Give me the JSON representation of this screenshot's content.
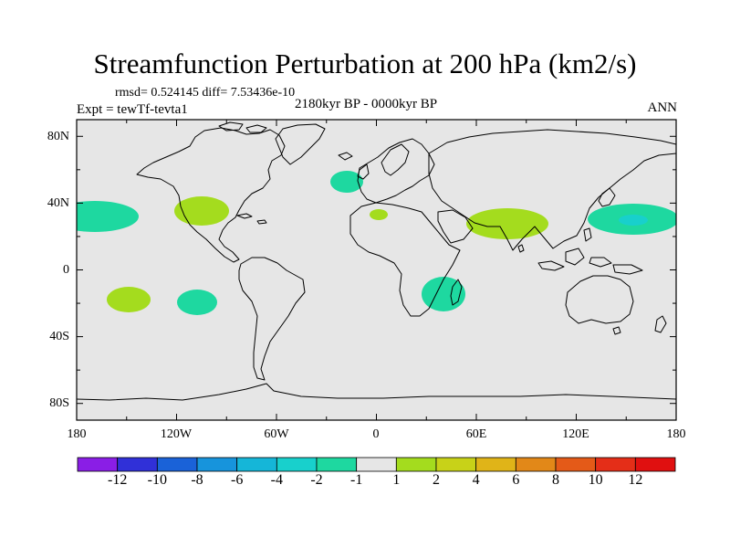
{
  "title": "Streamfunction Perturbation at 200 hPa (km2/s)",
  "stats": "rmsd= 0.524145 diff= 7.53436e-10",
  "expt": "Expt = tewTf-tevta1",
  "period": "2180kyr BP - 0000kyr BP",
  "season": "ANN",
  "lat_labels": [
    "80N",
    "40N",
    "0",
    "40S",
    "80S"
  ],
  "lon_labels": [
    "180",
    "120W",
    "60W",
    "0",
    "60E",
    "120E",
    "180"
  ],
  "colorbar": {
    "labels": [
      "-12",
      "-10",
      "-8",
      "-6",
      "-4",
      "-2",
      "-1",
      "1",
      "2",
      "4",
      "6",
      "8",
      "10",
      "12"
    ],
    "colors": [
      "#8a1ee6",
      "#3030d8",
      "#1a62d8",
      "#1794dc",
      "#15b6d8",
      "#18d0cc",
      "#1ed8a0",
      "#e6e6e6",
      "#a4dc1e",
      "#c8d218",
      "#e0b418",
      "#e28818",
      "#e45a18",
      "#e42e18",
      "#e01010"
    ]
  },
  "colors": {
    "land_background": "#e6e6e6",
    "neg_anomaly": "#1ed8a0",
    "pos_anomaly": "#a4dc1e",
    "strong_neg": "#18d0cc"
  },
  "map_data": {
    "projection": "cylindrical equidistant",
    "lat_range": [
      -90,
      90
    ],
    "lon_range": [
      -180,
      180
    ],
    "anomalies": [
      {
        "name": "central-north-pacific-negative",
        "lon": -175,
        "lat": 30,
        "value_class": "-2 to -1"
      },
      {
        "name": "mexico-positive",
        "lon": -108,
        "lat": 31,
        "value_class": "1 to 2"
      },
      {
        "name": "north-atlantic-negative",
        "lon": -24,
        "lat": 49,
        "value_class": "-2 to -1"
      },
      {
        "name": "north-africa-positive",
        "lon": 4,
        "lat": 33,
        "value_class": "1 to 2"
      },
      {
        "name": "south-asia-positive",
        "lon": 75,
        "lat": 29,
        "value_class": "1 to 2"
      },
      {
        "name": "northwest-pacific-negative",
        "lon": 160,
        "lat": 31,
        "value_class": "-4 to -1"
      },
      {
        "name": "south-pacific-positive",
        "lon": -141,
        "lat": -17,
        "value_class": "1 to 2"
      },
      {
        "name": "southeast-pacific-negative",
        "lon": -109,
        "lat": -19,
        "value_class": "-2 to -1"
      },
      {
        "name": "southern-africa-negative",
        "lon": 37,
        "lat": -16,
        "value_class": "-2 to -1"
      }
    ]
  }
}
